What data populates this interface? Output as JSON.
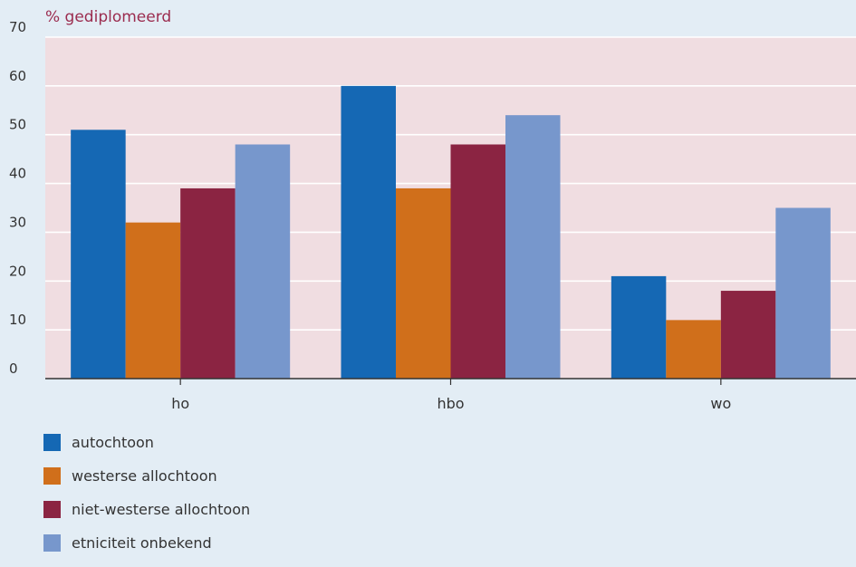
{
  "chart_data": {
    "type": "bar",
    "ylabel": "% gediplomeerd",
    "categories": [
      "ho",
      "hbo",
      "wo"
    ],
    "ylim": [
      0,
      70
    ],
    "yticks": [
      0,
      10,
      20,
      30,
      40,
      50,
      60,
      70
    ],
    "grid": true,
    "legend_position": "bottom-left",
    "series": [
      {
        "name": "autochtoon",
        "values": [
          51,
          60,
          21
        ],
        "color": "#1568b4"
      },
      {
        "name": "westerse allochtoon",
        "values": [
          32,
          39,
          12
        ],
        "color": "#d06f1b"
      },
      {
        "name": "niet-westerse allochtoon",
        "values": [
          39,
          48,
          18
        ],
        "color": "#8b2442"
      },
      {
        "name": "etniciteit onbekend",
        "values": [
          48,
          54,
          35
        ],
        "color": "#7797cc"
      }
    ]
  },
  "colors": {
    "page_background": "#e3edf5",
    "plot_background": "#f0dde1",
    "ylabel_color": "#9b2c4f",
    "axis_color": "#333333"
  }
}
